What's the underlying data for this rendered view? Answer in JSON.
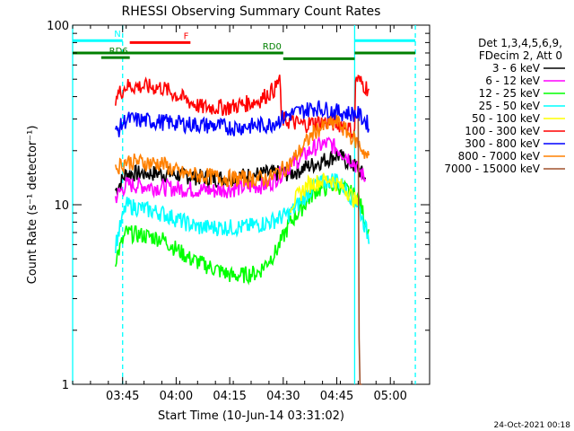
{
  "chart_data": {
    "type": "line",
    "title": "RHESSI Observing Summary Count Rates",
    "xlabel": "Start Time (10-Jun-14 03:31:02)",
    "ylabel": "Count Rate (s⁻¹ detector⁻¹)",
    "yscale": "log",
    "ylim": [
      1,
      100
    ],
    "xlim_minutes": [
      0,
      100
    ],
    "x_ticks": [
      {
        "label": "03:45",
        "t": 14
      },
      {
        "label": "04:00",
        "t": 29
      },
      {
        "label": "04:15",
        "t": 44
      },
      {
        "label": "04:30",
        "t": 59
      },
      {
        "label": "04:45",
        "t": 74
      },
      {
        "label": "05:00",
        "t": 89
      }
    ],
    "y_ticks": [
      {
        "label": "1",
        "v": 1
      },
      {
        "label": "10",
        "v": 10
      },
      {
        "label": "100",
        "v": 100
      }
    ],
    "legend_header": [
      "Det 1,3,4,5,6,9,",
      "FDecim 2, Att 0"
    ],
    "legend_position": "right",
    "series": [
      {
        "name": "3 - 6 keV",
        "color": "#000000",
        "points": [
          [
            12,
            12
          ],
          [
            15,
            15
          ],
          [
            25,
            15
          ],
          [
            40,
            14
          ],
          [
            55,
            15
          ],
          [
            61,
            15
          ],
          [
            68,
            17
          ],
          [
            74,
            19
          ],
          [
            80,
            16
          ],
          [
            82,
            14
          ]
        ]
      },
      {
        "name": "6 - 12 keV",
        "color": "#ff00ff",
        "points": [
          [
            12,
            11
          ],
          [
            15,
            13
          ],
          [
            25,
            12.5
          ],
          [
            40,
            12
          ],
          [
            55,
            13
          ],
          [
            60,
            16
          ],
          [
            68,
            21
          ],
          [
            72,
            22
          ],
          [
            78,
            18
          ],
          [
            82,
            14
          ]
        ]
      },
      {
        "name": "12 - 25 keV",
        "color": "#00ff00",
        "points": [
          [
            12,
            5
          ],
          [
            15,
            7
          ],
          [
            25,
            6.5
          ],
          [
            33,
            5
          ],
          [
            45,
            4
          ],
          [
            52,
            4.2
          ],
          [
            57,
            5.5
          ],
          [
            61,
            8
          ],
          [
            68,
            12
          ],
          [
            74,
            13
          ],
          [
            80,
            11
          ],
          [
            83,
            7
          ]
        ]
      },
      {
        "name": "25 - 50 keV",
        "color": "#00ffff",
        "points": [
          [
            12,
            6
          ],
          [
            15,
            10
          ],
          [
            25,
            9
          ],
          [
            35,
            7.5
          ],
          [
            48,
            7.5
          ],
          [
            55,
            8
          ],
          [
            61,
            9
          ],
          [
            68,
            13
          ],
          [
            74,
            14
          ],
          [
            80,
            10
          ],
          [
            83,
            6.5
          ]
        ]
      },
      {
        "name": "50 - 100 keV",
        "color": "#ffff00",
        "points": [
          [
            61,
            10
          ],
          [
            66,
            13
          ],
          [
            72,
            14
          ],
          [
            77,
            12
          ],
          [
            80,
            10
          ]
        ]
      },
      {
        "name": "100 - 300 keV",
        "color": "#ff0000",
        "points": [
          [
            12,
            40
          ],
          [
            15,
            46
          ],
          [
            25,
            45
          ],
          [
            30,
            40
          ],
          [
            36,
            35
          ],
          [
            44,
            35
          ],
          [
            52,
            38
          ],
          [
            57,
            45
          ],
          [
            58,
            52
          ],
          [
            58.5,
            30
          ],
          [
            64,
            28
          ],
          [
            70,
            29
          ],
          [
            76,
            28
          ],
          [
            79,
            25
          ],
          [
            79.2,
            51
          ],
          [
            83,
            44
          ]
        ]
      },
      {
        "name": "300 - 800 keV",
        "color": "#0000ff",
        "points": [
          [
            12,
            25
          ],
          [
            15,
            30
          ],
          [
            25,
            29
          ],
          [
            35,
            28
          ],
          [
            45,
            27
          ],
          [
            55,
            28
          ],
          [
            61,
            32
          ],
          [
            68,
            35
          ],
          [
            74,
            33
          ],
          [
            80,
            32
          ],
          [
            83,
            28
          ]
        ]
      },
      {
        "name": "800 - 7000 keV",
        "color": "#ff8000",
        "points": [
          [
            12,
            16
          ],
          [
            15,
            17.5
          ],
          [
            25,
            17
          ],
          [
            30,
            15
          ],
          [
            45,
            14
          ],
          [
            55,
            14
          ],
          [
            61,
            17
          ],
          [
            68,
            26
          ],
          [
            74,
            29
          ],
          [
            80,
            22
          ],
          [
            83,
            18
          ]
        ]
      },
      {
        "name": "7000 - 15000 keV",
        "color": "#a0522d",
        "points": [
          [
            80,
            30
          ],
          [
            80.3,
            1
          ],
          [
            81,
            1
          ]
        ]
      }
    ],
    "annotations": {
      "bars": [
        {
          "label": "N",
          "color": "#00ffff",
          "t0": 0,
          "t1": 14,
          "v": 82
        },
        {
          "label": "",
          "color": "#00ffff",
          "t0": 79,
          "t1": 96,
          "v": 82
        },
        {
          "label": "F",
          "color": "#ff0000",
          "t0": 16,
          "t1": 33,
          "v": 80
        },
        {
          "label": "RD0",
          "color": "#008000",
          "t0": 0,
          "t1": 59,
          "v": 70
        },
        {
          "label": "",
          "color": "#008000",
          "t0": 59,
          "t1": 79,
          "v": 65
        },
        {
          "label": "",
          "color": "#008000",
          "t0": 79,
          "t1": 96,
          "v": 70
        },
        {
          "label": "RD6",
          "color": "#008000",
          "t0": 8,
          "t1": 16,
          "v": 66
        }
      ],
      "vlines": [
        {
          "t": 0,
          "color": "#00ffff",
          "dashed": false
        },
        {
          "t": 14,
          "color": "#00ffff",
          "dashed": true
        },
        {
          "t": 79,
          "color": "#00ffff",
          "dashed": false
        },
        {
          "t": 96,
          "color": "#00ffff",
          "dashed": true
        }
      ]
    },
    "timestamp": "24-Oct-2021 00:18"
  }
}
